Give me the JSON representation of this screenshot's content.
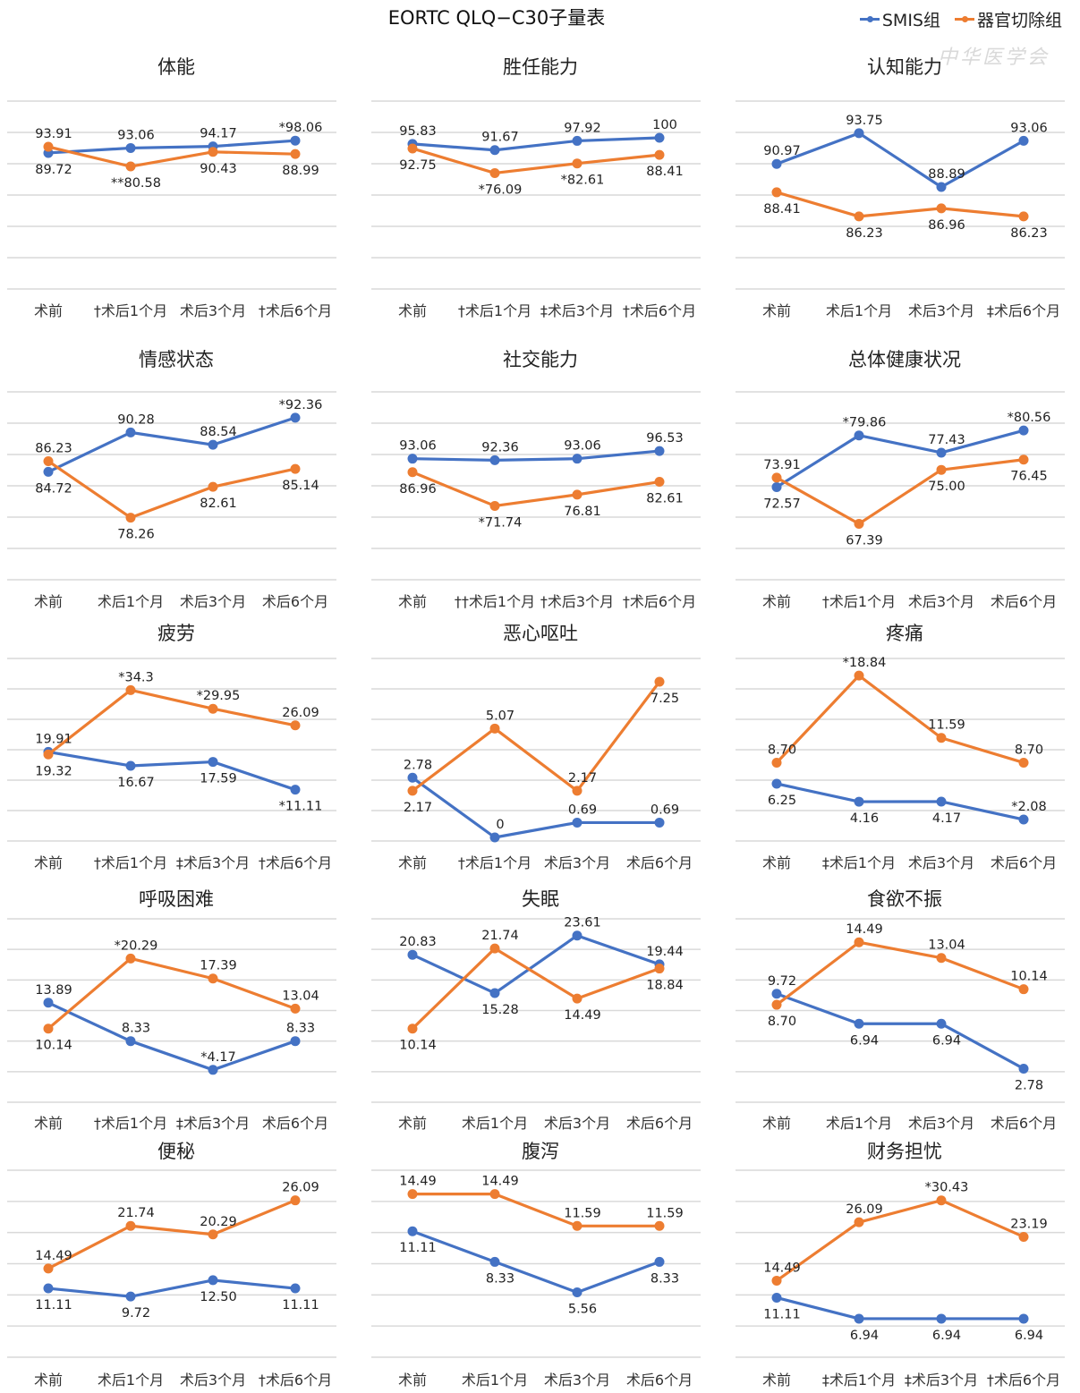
{
  "title": "EORTC QLQ−C30子量表",
  "watermark": "中华医学会",
  "legend": [
    {
      "name": "SMIS组",
      "color": "#4472C4"
    },
    {
      "name": "器官切除组",
      "color": "#ED7D31"
    }
  ],
  "chart_data": [
    {
      "type": "line",
      "title": "体能",
      "categories": [
        "术前",
        "†术后1个月",
        "术后3个月",
        "†术后6个月"
      ],
      "series": [
        {
          "name": "SMIS组",
          "values": [
            89.72,
            93.06,
            94.17,
            98.06
          ],
          "labels": [
            "89.72",
            "93.06",
            "94.17",
            "*98.06"
          ]
        },
        {
          "name": "器官切除组",
          "values": [
            93.91,
            80.58,
            90.43,
            88.99
          ],
          "labels": [
            "93.91",
            "**80.58",
            "90.43",
            "88.99"
          ]
        }
      ],
      "ylim": [
        0,
        120
      ],
      "grid": true
    },
    {
      "type": "line",
      "title": "胜任能力",
      "categories": [
        "术前",
        "†术后1个月",
        "‡术后3个月",
        "†术后6个月"
      ],
      "series": [
        {
          "name": "SMIS组",
          "values": [
            95.83,
            91.67,
            97.92,
            100
          ],
          "labels": [
            "95.83",
            "91.67",
            "97.92",
            "100"
          ]
        },
        {
          "name": "器官切除组",
          "values": [
            92.75,
            76.09,
            82.61,
            88.41
          ],
          "labels": [
            "92.75",
            "*76.09",
            "*82.61",
            "88.41"
          ]
        }
      ],
      "ylim": [
        0,
        120
      ],
      "grid": true
    },
    {
      "type": "line",
      "title": "认知能力",
      "categories": [
        "术前",
        "术后1个月",
        "术后3个月",
        "‡术后6个月"
      ],
      "series": [
        {
          "name": "SMIS组",
          "values": [
            90.97,
            93.75,
            88.89,
            93.06
          ],
          "labels": [
            "90.97",
            "93.75",
            "88.89",
            "93.06"
          ]
        },
        {
          "name": "器官切除组",
          "values": [
            88.41,
            86.23,
            86.96,
            86.23
          ],
          "labels": [
            "88.41",
            "86.23",
            "86.96",
            "86.23"
          ]
        }
      ],
      "ylim": [
        80,
        96
      ],
      "grid": true
    },
    {
      "type": "line",
      "title": "情感状态",
      "categories": [
        "术前",
        "术后1个月",
        "术后3个月",
        "术后6个月"
      ],
      "series": [
        {
          "name": "SMIS组",
          "values": [
            84.72,
            90.28,
            88.54,
            92.36
          ],
          "labels": [
            "84.72",
            "90.28",
            "88.54",
            "*92.36"
          ]
        },
        {
          "name": "器官切除组",
          "values": [
            86.23,
            78.26,
            82.61,
            85.14
          ],
          "labels": [
            "86.23",
            "78.26",
            "82.61",
            "85.14"
          ]
        }
      ],
      "ylim": [
        70,
        95
      ],
      "grid": true
    },
    {
      "type": "line",
      "title": "社交能力",
      "categories": [
        "术前",
        "††术后1个月",
        "†术后3个月",
        "†术后6个月"
      ],
      "series": [
        {
          "name": "SMIS组",
          "values": [
            93.06,
            92.36,
            93.06,
            96.53
          ],
          "labels": [
            "93.06",
            "92.36",
            "93.06",
            "96.53"
          ]
        },
        {
          "name": "器官切除组",
          "values": [
            86.96,
            71.74,
            76.81,
            82.61
          ],
          "labels": [
            "86.96",
            "*71.74",
            "76.81",
            "82.61"
          ]
        }
      ],
      "ylim": [
        40,
        120
      ],
      "grid": true
    },
    {
      "type": "line",
      "title": "总体健康状况",
      "categories": [
        "术前",
        "†术后1个月",
        "术后3个月",
        "术后6个月"
      ],
      "series": [
        {
          "name": "SMIS组",
          "values": [
            72.57,
            79.86,
            77.43,
            80.56
          ],
          "labels": [
            "72.57",
            "*79.86",
            "77.43",
            "*80.56"
          ]
        },
        {
          "name": "器官切除组",
          "values": [
            73.91,
            67.39,
            75.0,
            76.45
          ],
          "labels": [
            "73.91",
            "67.39",
            "75.00",
            "76.45"
          ]
        }
      ],
      "ylim": [
        60,
        85
      ],
      "grid": true
    },
    {
      "type": "line",
      "title": "疲劳",
      "categories": [
        "术前",
        "†术后1个月",
        "‡术后3个月",
        "†术后6个月"
      ],
      "series": [
        {
          "name": "SMIS组",
          "values": [
            19.91,
            16.67,
            17.59,
            11.11
          ],
          "labels": [
            "19.91",
            "16.67",
            "17.59",
            "*11.11"
          ]
        },
        {
          "name": "器官切除组",
          "values": [
            19.32,
            34.3,
            29.95,
            26.09
          ],
          "labels": [
            "19.32",
            "*34.3",
            "*29.95",
            "26.09"
          ]
        }
      ],
      "ylim": [
        0,
        40
      ],
      "grid": true
    },
    {
      "type": "line",
      "title": "恶心呕吐",
      "categories": [
        "术前",
        "†术后1个月",
        "术后3个月",
        "术后6个月"
      ],
      "series": [
        {
          "name": "SMIS组",
          "values": [
            2.78,
            0,
            0.69,
            0.69
          ],
          "labels": [
            "2.78",
            "0",
            "0.69",
            "0.69"
          ]
        },
        {
          "name": "器官切除组",
          "values": [
            2.17,
            5.07,
            2.17,
            7.25
          ],
          "labels": [
            "2.17",
            "5.07",
            "2.17",
            "7.25"
          ]
        }
      ],
      "ylim": [
        0,
        8
      ],
      "grid": true
    },
    {
      "type": "line",
      "title": "疼痛",
      "categories": [
        "术前",
        "‡术后1个月",
        "术后3个月",
        "术后6个月"
      ],
      "series": [
        {
          "name": "SMIS组",
          "values": [
            6.25,
            4.16,
            4.17,
            2.08
          ],
          "labels": [
            "6.25",
            "4.16",
            "4.17",
            "*2.08"
          ]
        },
        {
          "name": "器官切除组",
          "values": [
            8.7,
            18.84,
            11.59,
            8.7
          ],
          "labels": [
            "8.70",
            "*18.84",
            "11.59",
            "8.70"
          ]
        }
      ],
      "ylim": [
        0,
        20
      ],
      "grid": true
    },
    {
      "type": "line",
      "title": "呼吸困难",
      "categories": [
        "术前",
        "†术后1个月",
        "‡术后3个月",
        "术后6个月"
      ],
      "series": [
        {
          "name": "SMIS组",
          "values": [
            13.89,
            8.33,
            4.17,
            8.33
          ],
          "labels": [
            "13.89",
            "8.33",
            "*4.17",
            "8.33"
          ]
        },
        {
          "name": "器官切除组",
          "values": [
            10.14,
            20.29,
            17.39,
            13.04
          ],
          "labels": [
            "10.14",
            "*20.29",
            "17.39",
            "13.04"
          ]
        }
      ],
      "ylim": [
        0,
        25
      ],
      "grid": true
    },
    {
      "type": "line",
      "title": "失眠",
      "categories": [
        "术前",
        "术后1个月",
        "术后3个月",
        "术后6个月"
      ],
      "series": [
        {
          "name": "SMIS组",
          "values": [
            20.83,
            15.28,
            23.61,
            19.44
          ],
          "labels": [
            "20.83",
            "15.28",
            "23.61",
            "19.44"
          ]
        },
        {
          "name": "器官切除组",
          "values": [
            10.14,
            21.74,
            14.49,
            18.84
          ],
          "labels": [
            "10.14",
            "21.74",
            "14.49",
            "18.84"
          ]
        }
      ],
      "ylim": [
        0,
        25
      ],
      "grid": true
    },
    {
      "type": "line",
      "title": "食欲不振",
      "categories": [
        "术前",
        "术后1个月",
        "术后3个月",
        "术后6个月"
      ],
      "series": [
        {
          "name": "SMIS组",
          "values": [
            9.72,
            6.94,
            6.94,
            2.78
          ],
          "labels": [
            "9.72",
            "6.94",
            "6.94",
            "2.78"
          ]
        },
        {
          "name": "器官切除组",
          "values": [
            8.7,
            14.49,
            13.04,
            10.14
          ],
          "labels": [
            "8.70",
            "14.49",
            "13.04",
            "10.14"
          ]
        }
      ],
      "ylim": [
        0,
        16
      ],
      "grid": true
    },
    {
      "type": "line",
      "title": "便秘",
      "categories": [
        "术前",
        "术后1个月",
        "术后3个月",
        "†术后6个月"
      ],
      "series": [
        {
          "name": "SMIS组",
          "values": [
            11.11,
            9.72,
            12.5,
            11.11
          ],
          "labels": [
            "11.11",
            "9.72",
            "12.50",
            "11.11"
          ]
        },
        {
          "name": "器官切除组",
          "values": [
            14.49,
            21.74,
            20.29,
            26.09
          ],
          "labels": [
            "14.49",
            "21.74",
            "20.29",
            "26.09"
          ]
        }
      ],
      "ylim": [
        0,
        30
      ],
      "grid": true
    },
    {
      "type": "line",
      "title": "腹泻",
      "categories": [
        "术前",
        "术后1个月",
        "术后3个月",
        "术后6个月"
      ],
      "series": [
        {
          "name": "SMIS组",
          "values": [
            11.11,
            8.33,
            5.56,
            8.33
          ],
          "labels": [
            "11.11",
            "8.33",
            "5.56",
            "8.33"
          ]
        },
        {
          "name": "器官切除组",
          "values": [
            14.49,
            14.49,
            11.59,
            11.59
          ],
          "labels": [
            "14.49",
            "14.49",
            "11.59",
            "11.59"
          ]
        }
      ],
      "ylim": [
        0,
        16
      ],
      "grid": true
    },
    {
      "type": "line",
      "title": "财务担忧",
      "categories": [
        "术前",
        "‡术后1个月",
        "‡术后3个月",
        "†术后6个月"
      ],
      "series": [
        {
          "name": "SMIS组",
          "values": [
            11.11,
            6.94,
            6.94,
            6.94
          ],
          "labels": [
            "11.11",
            "6.94",
            "6.94",
            "6.94"
          ]
        },
        {
          "name": "器官切除组",
          "values": [
            14.49,
            26.09,
            30.43,
            23.19
          ],
          "labels": [
            "14.49",
            "26.09",
            "*30.43",
            "23.19"
          ]
        }
      ],
      "ylim": [
        0,
        35
      ],
      "grid": true
    }
  ]
}
